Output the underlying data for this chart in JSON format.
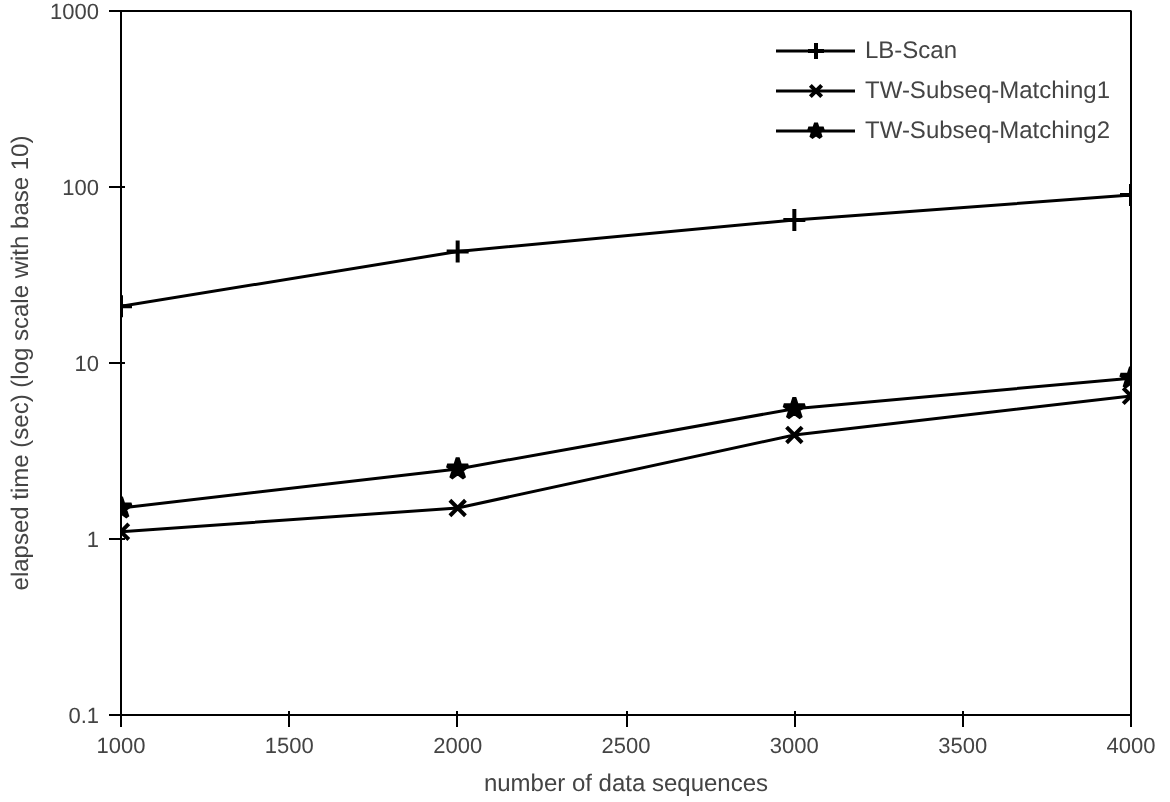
{
  "chart_data": {
    "type": "line",
    "xlabel": "number of data sequences",
    "ylabel": "elapsed time (sec) (log scale with base 10)",
    "log": "y",
    "x": [
      1000,
      2000,
      3000,
      4000
    ],
    "xlim": [
      1000,
      4000
    ],
    "xticks": [
      1000,
      1500,
      2000,
      2500,
      3000,
      3500,
      4000
    ],
    "ylim": [
      0.1,
      1000
    ],
    "yticks": [
      0.1,
      1,
      10,
      100,
      1000
    ],
    "grid": false,
    "legend": "top right",
    "line_style": "solid",
    "series": [
      {
        "name": "LB-Scan",
        "color": "#000000",
        "marker": "cross",
        "values": [
          21,
          43,
          65,
          90
        ]
      },
      {
        "name": "TW-Subseq-Matching1",
        "color": "#000000",
        "marker": "x",
        "values": [
          1.1,
          1.5,
          3.9,
          6.5
        ]
      },
      {
        "name": "TW-Subseq-Matching2",
        "color": "#000000",
        "marker": "star",
        "values": [
          1.5,
          2.5,
          5.5,
          8.2
        ]
      }
    ]
  }
}
